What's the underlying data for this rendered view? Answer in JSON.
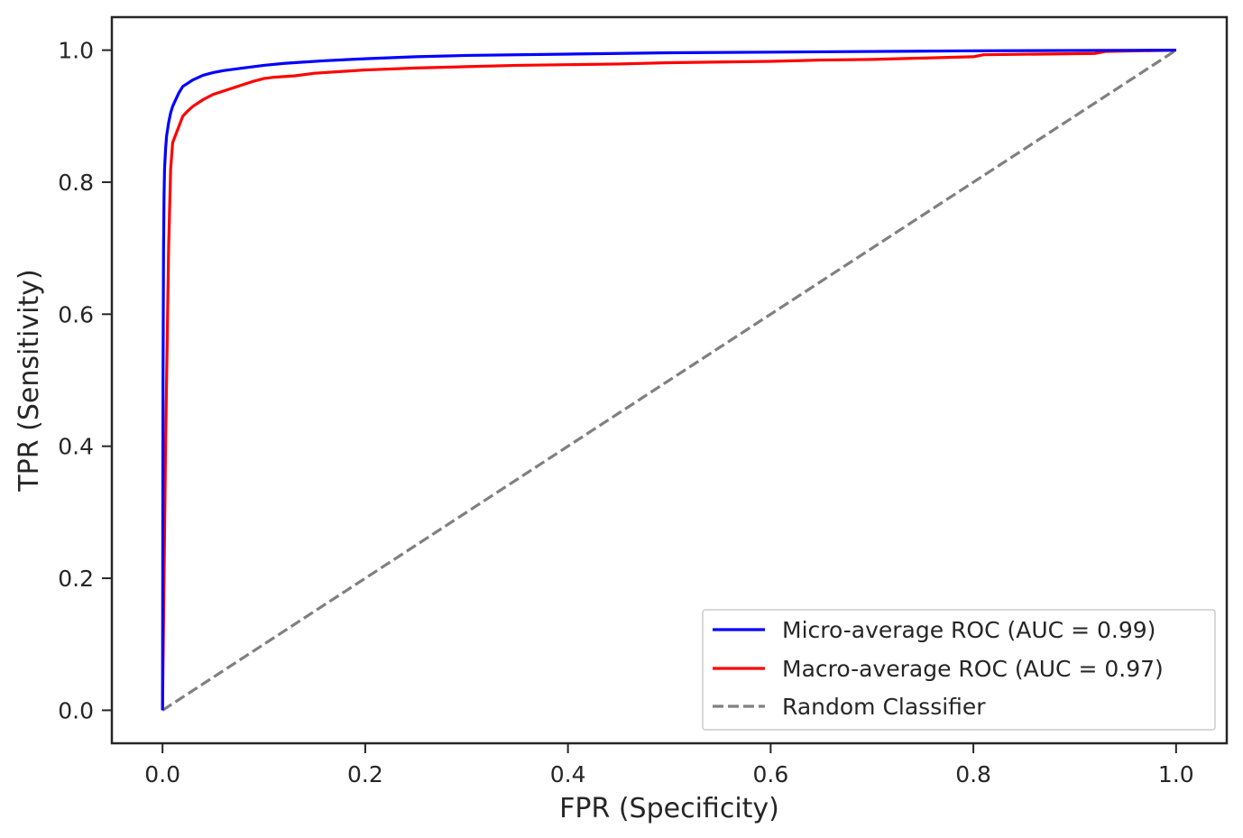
{
  "chart_data": {
    "type": "line",
    "title": "",
    "xlabel": "FPR (Specificity)",
    "ylabel": "TPR (Sensitivity)",
    "xlim": [
      -0.05,
      1.05
    ],
    "ylim": [
      -0.05,
      1.05
    ],
    "xticks": [
      0.0,
      0.2,
      0.4,
      0.6,
      0.8,
      1.0
    ],
    "yticks": [
      0.0,
      0.2,
      0.4,
      0.6,
      0.8,
      1.0
    ],
    "xtick_labels": [
      "0.0",
      "0.2",
      "0.4",
      "0.6",
      "0.8",
      "1.0"
    ],
    "ytick_labels": [
      "0.0",
      "0.2",
      "0.4",
      "0.6",
      "0.8",
      "1.0"
    ],
    "grid": false,
    "legend_position": "lower-right",
    "series": [
      {
        "name": "Micro-average ROC (AUC = 0.99)",
        "color": "#0000ff",
        "style": "solid",
        "x": [
          0.0,
          0.0005,
          0.001,
          0.0015,
          0.002,
          0.003,
          0.004,
          0.006,
          0.008,
          0.01,
          0.013,
          0.016,
          0.02,
          0.025,
          0.03,
          0.04,
          0.05,
          0.06,
          0.08,
          0.1,
          0.12,
          0.14,
          0.16,
          0.2,
          0.25,
          0.3,
          0.4,
          0.5,
          0.6,
          0.7,
          0.8,
          0.9,
          1.0
        ],
        "y": [
          0.0,
          0.5,
          0.7,
          0.78,
          0.82,
          0.85,
          0.87,
          0.89,
          0.905,
          0.915,
          0.925,
          0.935,
          0.945,
          0.95,
          0.955,
          0.962,
          0.966,
          0.969,
          0.973,
          0.977,
          0.98,
          0.982,
          0.984,
          0.987,
          0.99,
          0.992,
          0.994,
          0.996,
          0.997,
          0.998,
          0.999,
          0.9995,
          1.0
        ]
      },
      {
        "name": "Macro-average ROC (AUC = 0.97)",
        "color": "#ff0000",
        "style": "solid",
        "x": [
          0.0,
          0.003,
          0.006,
          0.008,
          0.01,
          0.015,
          0.02,
          0.025,
          0.03,
          0.04,
          0.05,
          0.06,
          0.07,
          0.08,
          0.09,
          0.1,
          0.11,
          0.12,
          0.13,
          0.15,
          0.2,
          0.25,
          0.3,
          0.35,
          0.4,
          0.45,
          0.5,
          0.55,
          0.6,
          0.65,
          0.7,
          0.75,
          0.8,
          0.81,
          0.92,
          0.93,
          1.0
        ],
        "y": [
          0.0,
          0.4,
          0.7,
          0.82,
          0.86,
          0.88,
          0.9,
          0.908,
          0.915,
          0.925,
          0.933,
          0.938,
          0.943,
          0.948,
          0.953,
          0.957,
          0.959,
          0.96,
          0.961,
          0.965,
          0.97,
          0.973,
          0.975,
          0.977,
          0.978,
          0.979,
          0.981,
          0.982,
          0.983,
          0.985,
          0.986,
          0.988,
          0.99,
          0.993,
          0.995,
          0.998,
          1.0
        ]
      },
      {
        "name": "Random Classifier",
        "color": "#808080",
        "style": "dashed",
        "x": [
          0.0,
          1.0
        ],
        "y": [
          0.0,
          1.0
        ]
      }
    ]
  }
}
